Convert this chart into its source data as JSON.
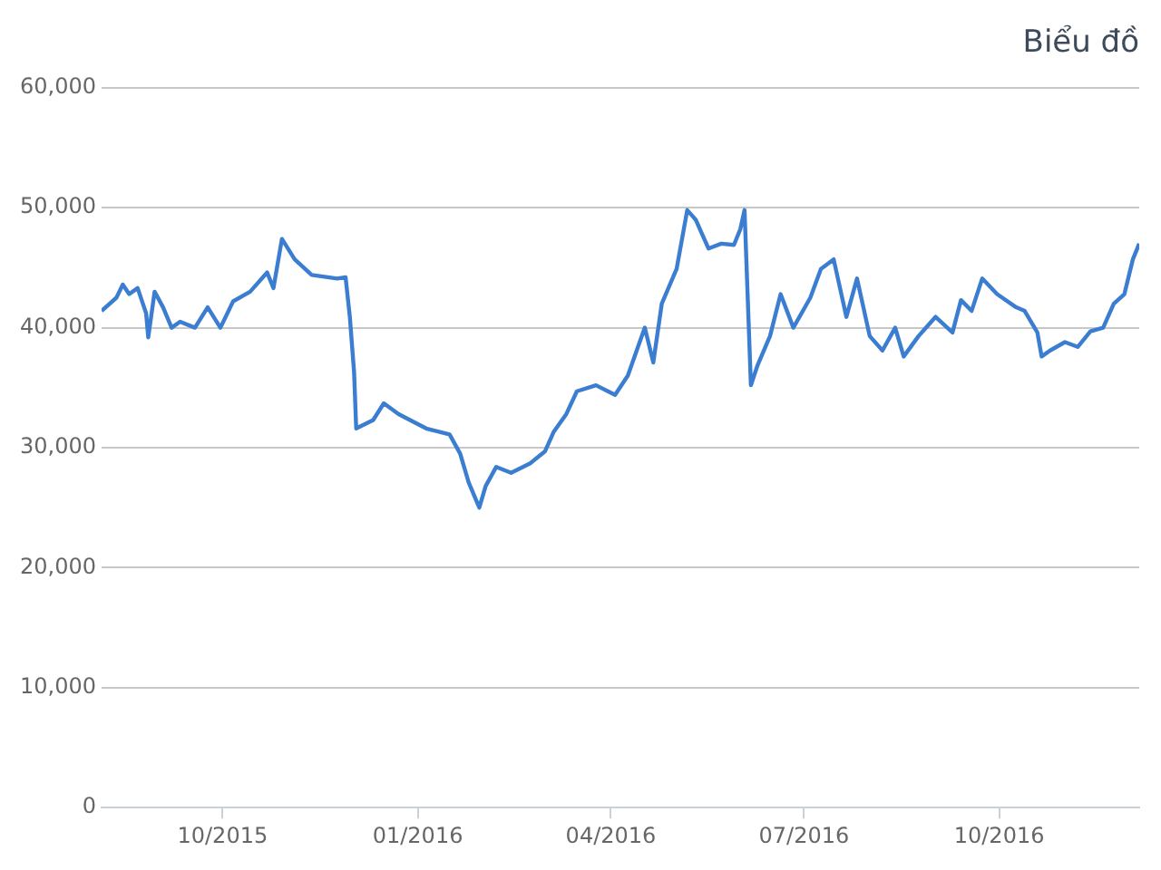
{
  "chart_data": {
    "type": "line",
    "title": "Biểu đồ",
    "x": [
      "2015-08-05",
      "2015-08-12",
      "2015-08-15",
      "2015-08-18",
      "2015-08-22",
      "2015-08-26",
      "2015-08-27",
      "2015-08-30",
      "2015-09-03",
      "2015-09-07",
      "2015-09-11",
      "2015-09-18",
      "2015-09-24",
      "2015-09-30",
      "2015-10-06",
      "2015-10-14",
      "2015-10-22",
      "2015-10-25",
      "2015-10-29",
      "2015-11-04",
      "2015-11-12",
      "2015-11-24",
      "2015-11-28",
      "2015-11-30",
      "2015-12-02",
      "2015-12-03",
      "2015-12-11",
      "2015-12-16",
      "2015-12-23",
      "2016-01-05",
      "2016-01-16",
      "2016-01-21",
      "2016-01-25",
      "2016-01-30",
      "2016-02-02",
      "2016-02-07",
      "2016-02-14",
      "2016-02-23",
      "2016-03-01",
      "2016-03-05",
      "2016-03-11",
      "2016-03-16",
      "2016-03-25",
      "2016-04-03",
      "2016-04-09",
      "2016-04-17",
      "2016-04-21",
      "2016-04-25",
      "2016-05-02",
      "2016-05-07",
      "2016-05-11",
      "2016-05-17",
      "2016-05-23",
      "2016-05-29",
      "2016-06-01",
      "2016-06-03",
      "2016-06-06",
      "2016-06-09",
      "2016-06-15",
      "2016-06-20",
      "2016-06-26",
      "2016-07-04",
      "2016-07-09",
      "2016-07-15",
      "2016-07-21",
      "2016-07-26",
      "2016-08-01",
      "2016-08-07",
      "2016-08-13",
      "2016-08-17",
      "2016-08-24",
      "2016-09-01",
      "2016-09-09",
      "2016-09-13",
      "2016-09-18",
      "2016-09-23",
      "2016-09-30",
      "2016-10-09",
      "2016-10-13",
      "2016-10-19",
      "2016-10-21",
      "2016-10-25",
      "2016-11-01",
      "2016-11-07",
      "2016-11-13",
      "2016-11-19",
      "2016-11-24",
      "2016-11-29",
      "2016-12-03",
      "2016-12-06"
    ],
    "series": [
      {
        "color": "#3b7dd0",
        "values": [
          41400,
          42500,
          43600,
          42800,
          43300,
          41200,
          39200,
          43000,
          41700,
          40000,
          40500,
          40000,
          41700,
          40000,
          42200,
          43000,
          44600,
          43300,
          47400,
          45700,
          44400,
          44100,
          44200,
          40900,
          36300,
          31600,
          32300,
          33700,
          32800,
          31600,
          31100,
          29500,
          27100,
          25000,
          26800,
          28400,
          27900,
          28700,
          29700,
          31300,
          32800,
          34700,
          35200,
          34400,
          36000,
          40000,
          37100,
          42000,
          44900,
          49800,
          49000,
          46600,
          47000,
          46900,
          48200,
          49800,
          35200,
          36800,
          39300,
          42800,
          40000,
          42500,
          44900,
          45700,
          40900,
          44100,
          39300,
          38100,
          40000,
          37600,
          39300,
          40900,
          39600,
          42300,
          41400,
          44100,
          42800,
          41700,
          41400,
          39600,
          37600,
          38100,
          38800,
          38400,
          39700,
          40000,
          42000,
          42800,
          45700,
          47000
        ]
      }
    ],
    "xlim": [
      "2015-08-05",
      "2016-12-06"
    ],
    "xticks": [
      {
        "value": "2015-10-01",
        "label": "10/2015"
      },
      {
        "value": "2016-01-01",
        "label": "01/2016"
      },
      {
        "value": "2016-04-01",
        "label": "04/2016"
      },
      {
        "value": "2016-07-01",
        "label": "07/2016"
      },
      {
        "value": "2016-10-01",
        "label": "10/2016"
      }
    ],
    "ylim": [
      0,
      60000
    ],
    "yticks": [
      0,
      {
        "value": 10000,
        "label": "10,000"
      },
      {
        "value": 20000,
        "label": "20,000"
      },
      {
        "value": 30000,
        "label": "30,000"
      },
      {
        "value": 40000,
        "label": "40,000"
      },
      {
        "value": 50000,
        "label": "50,000"
      },
      {
        "value": 60000,
        "label": "60,000"
      }
    ],
    "grid": "y",
    "legend": false,
    "marker": "none",
    "line_style": "solid"
  }
}
